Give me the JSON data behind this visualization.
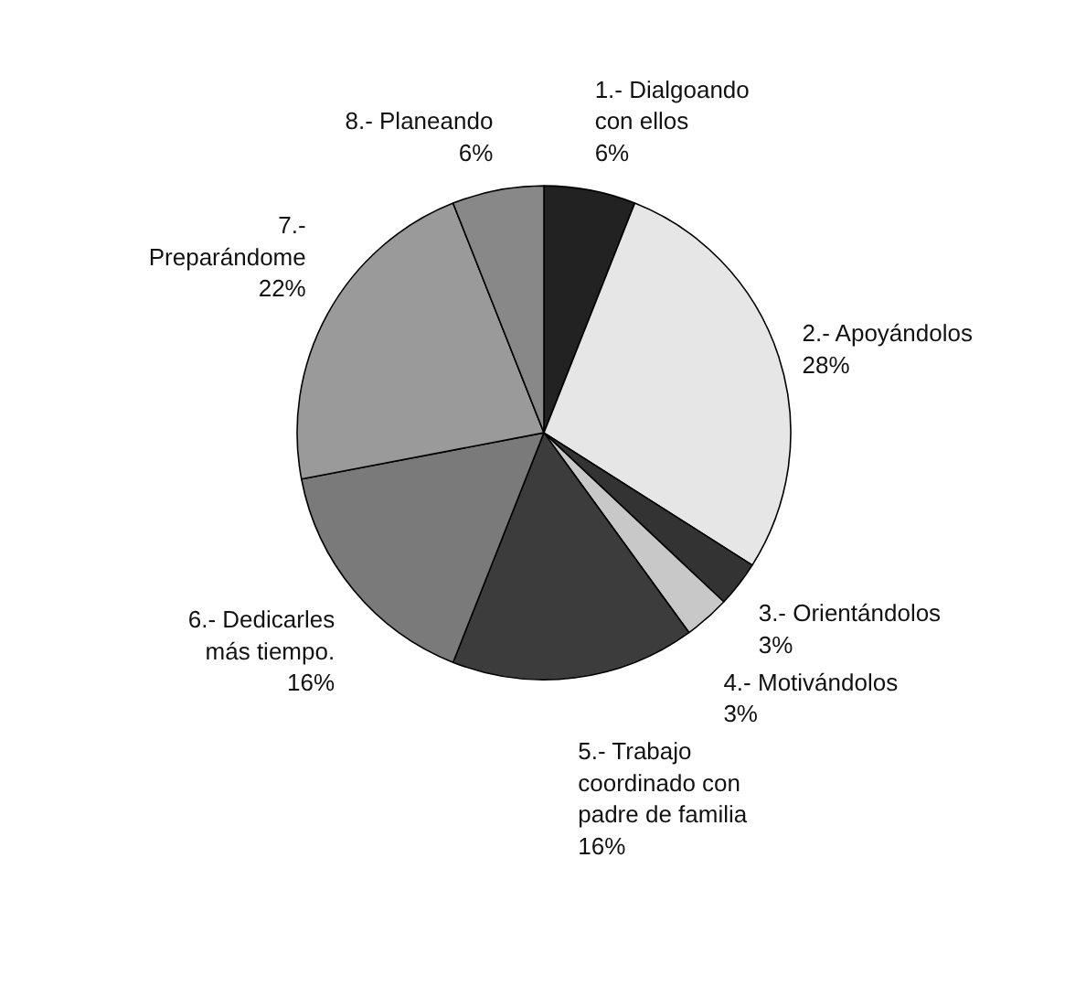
{
  "chart_data": {
    "type": "pie",
    "categories": [
      "1.- Dialgoando\ncon ellos",
      "2.- Apoyándolos",
      "3.- Orientándolos",
      "4.- Motivándolos",
      "5.- Trabajo\ncoordinado con\npadre de familia",
      "6.- Dedicarles\nmás tiempo.",
      "7.-\nPreparándome",
      "8.- Planeando"
    ],
    "values": [
      6,
      28,
      3,
      3,
      16,
      16,
      22,
      6
    ],
    "value_labels": [
      "6%",
      "28%",
      "3%",
      "3%",
      "16%",
      "16%",
      "22%",
      "6%"
    ],
    "colors": [
      "#222222",
      "#e6e6e6",
      "#333333",
      "#c8c8c8",
      "#3c3c3c",
      "#7a7a7a",
      "#9a9a9a",
      "#888888"
    ]
  }
}
